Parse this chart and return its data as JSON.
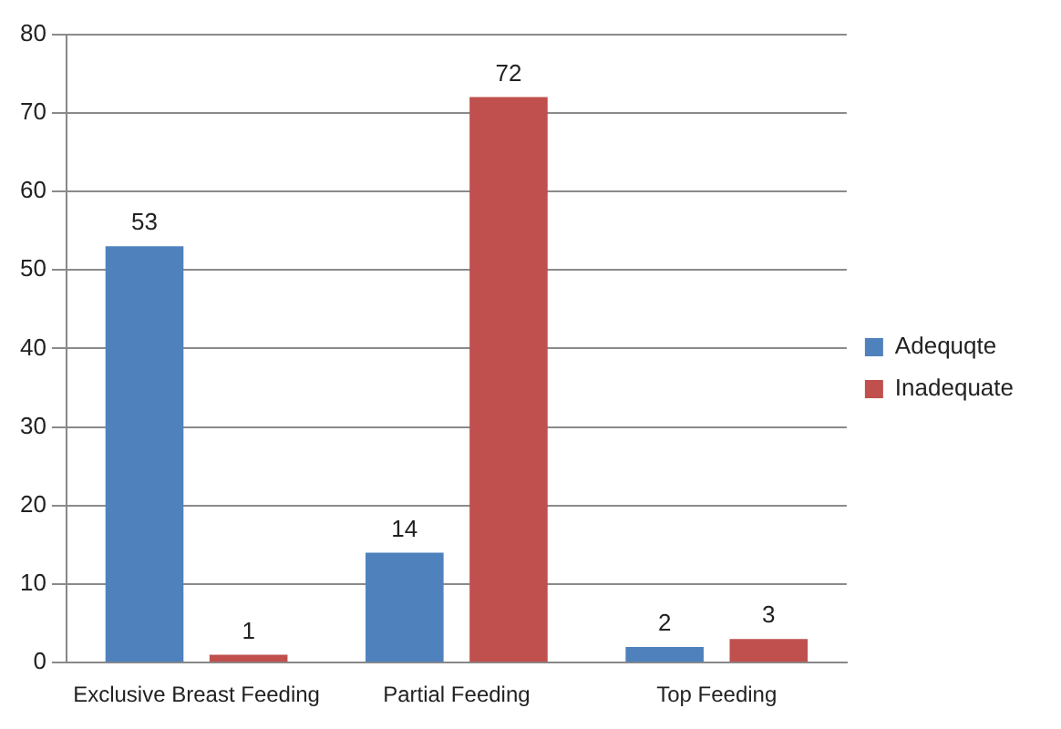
{
  "chart_data": {
    "type": "bar",
    "categories": [
      "Exclusive Breast Feeding",
      "Partial Feeding",
      "Top Feeding"
    ],
    "series": [
      {
        "name": "Adequqte",
        "color": "#4f81bd",
        "values": [
          53,
          14,
          2
        ]
      },
      {
        "name": "Inadequate",
        "color": "#c0504d",
        "values": [
          1,
          72,
          3
        ]
      }
    ],
    "ylim": [
      0,
      80
    ],
    "yticks": [
      0,
      10,
      20,
      30,
      40,
      50,
      60,
      70,
      80
    ],
    "grid": "y",
    "legend": "right",
    "data_labels": true
  }
}
